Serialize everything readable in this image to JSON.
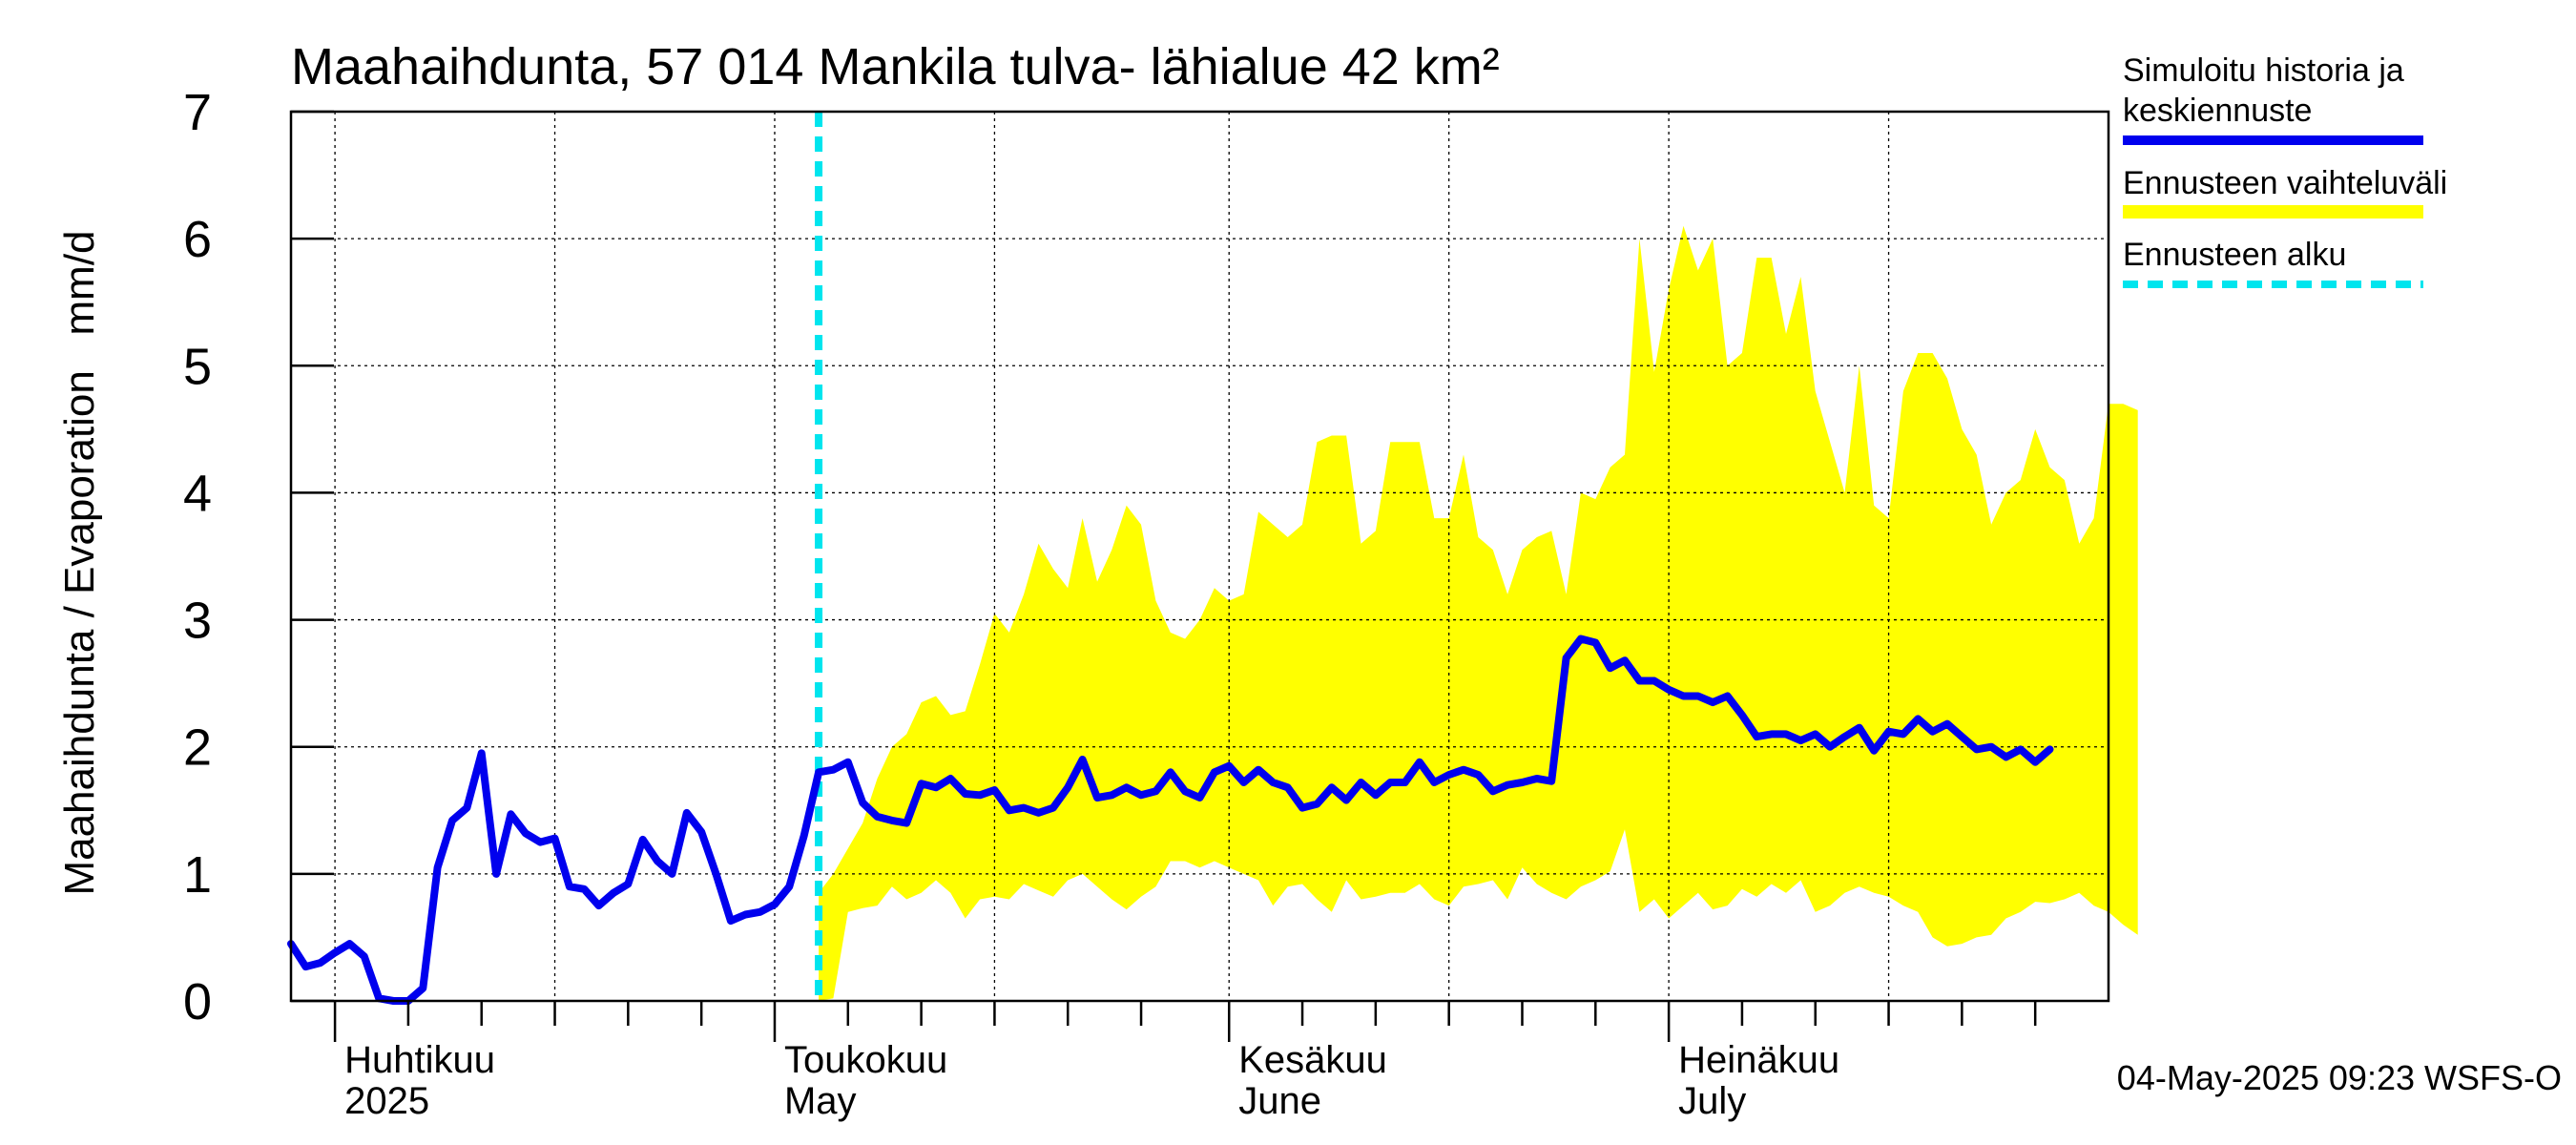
{
  "chart_data": {
    "type": "area",
    "title": "Maahaihdunta, 57 014 Mankila tulva- lähialue 42 km²",
    "ylabel": "Maahaihdunta / Evaporation   mm/d",
    "ylim": [
      0,
      7
    ],
    "yticks": [
      0,
      1,
      2,
      3,
      4,
      5,
      6,
      7
    ],
    "xlim": [
      "2025-03-29",
      "2025-07-31"
    ],
    "grid": true,
    "month_labels": [
      {
        "date": "2025-04-01",
        "line1": "Huhtikuu",
        "line2": "2025"
      },
      {
        "date": "2025-05-01",
        "line1": "Toukokuu",
        "line2": "May"
      },
      {
        "date": "2025-06-01",
        "line1": "Kesäkuu",
        "line2": "June"
      },
      {
        "date": "2025-07-01",
        "line1": "Heinäkuu",
        "line2": "July"
      }
    ],
    "forecast_start": "2025-05-04",
    "legend": {
      "position": "right",
      "entries": [
        {
          "label_line1": "Simuloitu historia ja",
          "label_line2": "keskiennuste",
          "color": "#0000ee",
          "style": "solid"
        },
        {
          "label_line1": "Ennusteen vaihteluväli",
          "label_line2": "",
          "color": "#ffff00",
          "style": "band"
        },
        {
          "label_line1": "Ennusteen alku",
          "label_line2": "",
          "color": "#00e5ee",
          "style": "dashed"
        }
      ]
    },
    "colors": {
      "series": "#0000ee",
      "band": "#ffff00",
      "forecast_start": "#00e5ee",
      "grid": "#000000"
    },
    "footer": "04-May-2025 09:23 WSFS-O",
    "series": [
      {
        "name": "Simuloitu historia ja keskiennuste",
        "start_date": "2025-03-29",
        "values": [
          0.45,
          0.27,
          0.3,
          0.38,
          0.45,
          0.35,
          0.02,
          0.0,
          0.0,
          0.1,
          1.05,
          1.42,
          1.52,
          1.95,
          1.0,
          1.47,
          1.32,
          1.25,
          1.28,
          0.9,
          0.88,
          0.75,
          0.85,
          0.92,
          1.27,
          1.1,
          1.0,
          1.48,
          1.33,
          1.0,
          0.63,
          0.68,
          0.7,
          0.76,
          0.9,
          1.3,
          1.8,
          1.82,
          1.88,
          1.56,
          1.45,
          1.42,
          1.4,
          1.71,
          1.68,
          1.75,
          1.63,
          1.62,
          1.66,
          1.5,
          1.52,
          1.48,
          1.52,
          1.68,
          1.9,
          1.6,
          1.62,
          1.68,
          1.62,
          1.65,
          1.8,
          1.65,
          1.6,
          1.8,
          1.85,
          1.72,
          1.82,
          1.72,
          1.68,
          1.52,
          1.55,
          1.68,
          1.58,
          1.72,
          1.62,
          1.72,
          1.72,
          1.88,
          1.72,
          1.78,
          1.82,
          1.78,
          1.65,
          1.7,
          1.72,
          1.75,
          1.73,
          2.7,
          2.85,
          2.82,
          2.62,
          2.68,
          2.52,
          2.52,
          2.45,
          2.4,
          2.4,
          2.35,
          2.4,
          2.25,
          2.08,
          2.1,
          2.1,
          2.05,
          2.1,
          2.0,
          2.08,
          2.15,
          1.97,
          2.12,
          2.1,
          2.22,
          2.12,
          2.18,
          2.08,
          1.98,
          2.0,
          1.92,
          1.98,
          1.88,
          1.98
        ]
      },
      {
        "name": "Ennusteen vaihteluväli",
        "start_date": "2025-05-04",
        "upper": [
          0.85,
          1.0,
          1.2,
          1.4,
          1.75,
          2.0,
          2.1,
          2.35,
          2.4,
          2.25,
          2.28,
          2.65,
          3.05,
          2.9,
          3.2,
          3.6,
          3.4,
          3.25,
          3.8,
          3.3,
          3.55,
          3.9,
          3.75,
          3.15,
          2.9,
          2.85,
          3.0,
          3.25,
          3.15,
          3.2,
          3.85,
          3.75,
          3.65,
          3.75,
          4.4,
          4.45,
          4.45,
          3.6,
          3.7,
          4.4,
          4.4,
          4.4,
          3.8,
          3.8,
          4.3,
          3.65,
          3.55,
          3.2,
          3.55,
          3.65,
          3.7,
          3.2,
          4.0,
          3.95,
          4.2,
          4.3,
          6.0,
          4.95,
          5.6,
          6.1,
          5.75,
          6.0,
          5.0,
          5.1,
          5.85,
          5.85,
          5.25,
          5.7,
          4.8,
          4.4,
          4.0,
          5.0,
          3.9,
          3.8,
          4.8,
          5.1,
          5.1,
          4.9,
          4.5,
          4.3,
          3.75,
          4.0,
          4.1,
          4.5,
          4.2,
          4.1,
          3.6,
          3.8,
          4.7,
          4.7,
          4.65
        ],
        "lower": [
          0.0,
          0.02,
          0.7,
          0.73,
          0.75,
          0.9,
          0.8,
          0.85,
          0.95,
          0.85,
          0.65,
          0.8,
          0.82,
          0.8,
          0.92,
          0.87,
          0.82,
          0.95,
          1.0,
          0.9,
          0.8,
          0.72,
          0.82,
          0.9,
          1.1,
          1.1,
          1.05,
          1.1,
          1.05,
          1.0,
          0.95,
          0.75,
          0.9,
          0.92,
          0.8,
          0.7,
          0.95,
          0.8,
          0.82,
          0.85,
          0.85,
          0.92,
          0.8,
          0.75,
          0.9,
          0.92,
          0.95,
          0.8,
          1.05,
          0.92,
          0.85,
          0.8,
          0.9,
          0.95,
          1.02,
          1.35,
          0.7,
          0.8,
          0.65,
          0.75,
          0.85,
          0.72,
          0.75,
          0.88,
          0.82,
          0.92,
          0.85,
          0.95,
          0.7,
          0.75,
          0.85,
          0.9,
          0.85,
          0.82,
          0.75,
          0.7,
          0.5,
          0.43,
          0.45,
          0.5,
          0.52,
          0.65,
          0.7,
          0.78,
          0.77,
          0.8,
          0.85,
          0.75,
          0.7,
          0.6,
          0.52
        ]
      }
    ]
  }
}
